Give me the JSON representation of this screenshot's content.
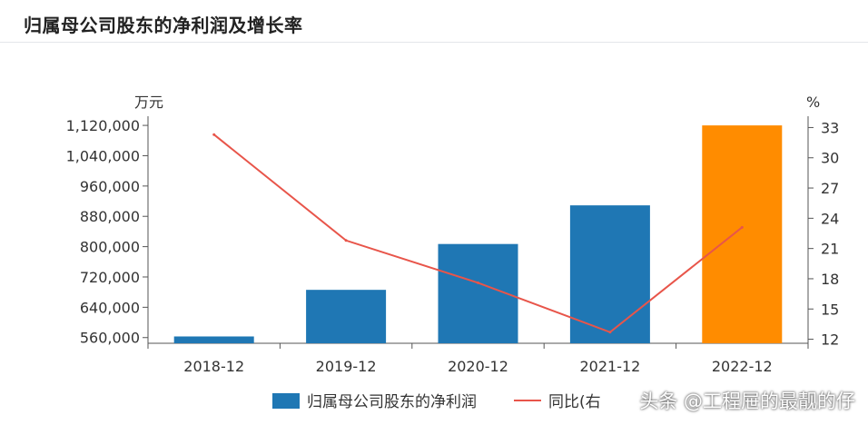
{
  "title": "归属母公司股东的净利润及增长率",
  "watermark": "头条 @工程屉的最靓的仔",
  "colors": {
    "bar": "#1f77b4",
    "bar_highlight": "#ff8c00",
    "line": "#e8554a",
    "axis": "#555555"
  },
  "chart_data": {
    "type": "bar",
    "categories": [
      "2018-12",
      "2019-12",
      "2020-12",
      "2021-12",
      "2022-12"
    ],
    "series": [
      {
        "name": "归属母公司股东的净利润",
        "type": "bar",
        "axis": "left",
        "values": [
          563000,
          686000,
          807000,
          909000,
          1120000
        ],
        "highlight_index": 4
      },
      {
        "name": "同比(右",
        "type": "line",
        "axis": "right",
        "values": [
          32.3,
          21.8,
          17.6,
          12.7,
          23.1
        ]
      }
    ],
    "left_axis": {
      "unit": "万元",
      "ylim": [
        545000,
        1125000
      ],
      "ticks": [
        560000,
        640000,
        720000,
        800000,
        880000,
        960000,
        1040000,
        1120000
      ],
      "tick_labels": [
        "560,000",
        "640,000",
        "720,000",
        "800,000",
        "880,000",
        "960,000",
        "1,040,000",
        "1,120,000"
      ]
    },
    "right_axis": {
      "unit": "%",
      "ylim": [
        11.6,
        33.4
      ],
      "ticks": [
        12,
        15,
        18,
        21,
        24,
        27,
        30,
        33
      ],
      "tick_labels": [
        "12",
        "15",
        "18",
        "21",
        "24",
        "27",
        "30",
        "33"
      ]
    },
    "grid": false,
    "legend": "bottom"
  }
}
